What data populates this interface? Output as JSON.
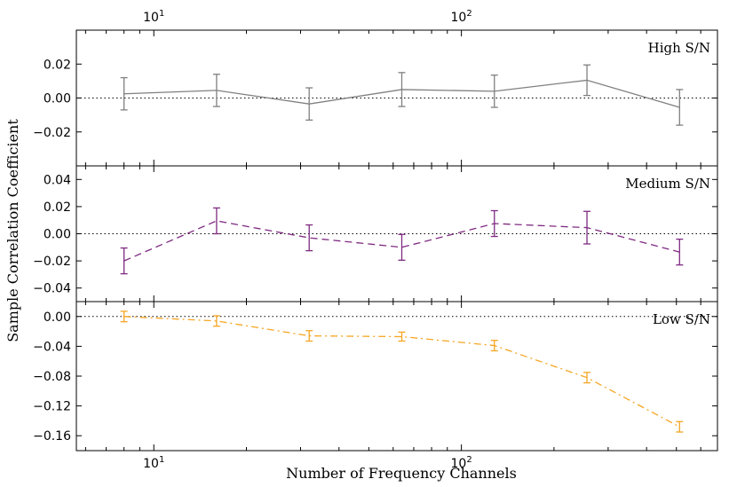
{
  "chart_data": {
    "type": "line",
    "xscale": "log",
    "xlim": [
      5.6,
      680
    ],
    "xlabel": "Number of Frequency Channels",
    "ylabel": "Sample Correlation Coefficient",
    "x_major_ticks": [
      10,
      100
    ],
    "x_tick_labels": [
      {
        "base": "10",
        "exp": "1"
      },
      {
        "base": "10",
        "exp": "2"
      }
    ],
    "x": [
      8,
      16,
      32,
      64,
      128,
      256,
      512
    ],
    "panels": [
      {
        "label": "High S/N",
        "color": "#808080",
        "linestyle": "solid",
        "ylim": [
          -0.04,
          0.04
        ],
        "yticks": [
          0.02,
          0.0,
          -0.02
        ],
        "ytick_labels": [
          "0.02",
          "0.00",
          "−0.02"
        ],
        "values": [
          0.0025,
          0.0045,
          -0.0035,
          0.005,
          0.004,
          0.0105,
          -0.0055
        ],
        "errors": [
          0.0095,
          0.0095,
          0.0095,
          0.01,
          0.0095,
          0.009,
          0.0105
        ]
      },
      {
        "label": "Medium S/N",
        "color": "#7f2a82",
        "linestyle": "dashed",
        "ylim": [
          -0.05,
          0.05
        ],
        "yticks": [
          0.04,
          0.02,
          0.0,
          -0.02,
          -0.04
        ],
        "ytick_labels": [
          "0.04",
          "0.02",
          "0.00",
          "−0.02",
          "−0.04"
        ],
        "values": [
          -0.02,
          0.0095,
          -0.003,
          -0.01,
          0.0075,
          0.0045,
          -0.0135
        ],
        "errors": [
          0.0095,
          0.0095,
          0.0095,
          0.0095,
          0.0095,
          0.012,
          0.0095
        ]
      },
      {
        "label": "Low S/N",
        "color": "#f5a623",
        "linestyle": "dashdot",
        "ylim": [
          -0.18,
          0.02
        ],
        "yticks": [
          0.0,
          -0.04,
          -0.08,
          -0.12,
          -0.16
        ],
        "ytick_labels": [
          "0.00",
          "−0.04",
          "−0.08",
          "−0.12",
          "−0.16"
        ],
        "values": [
          0.0,
          -0.006,
          -0.026,
          -0.027,
          -0.039,
          -0.082,
          -0.148
        ],
        "errors": [
          0.007,
          0.007,
          0.007,
          0.006,
          0.007,
          0.007,
          0.007
        ]
      }
    ]
  }
}
